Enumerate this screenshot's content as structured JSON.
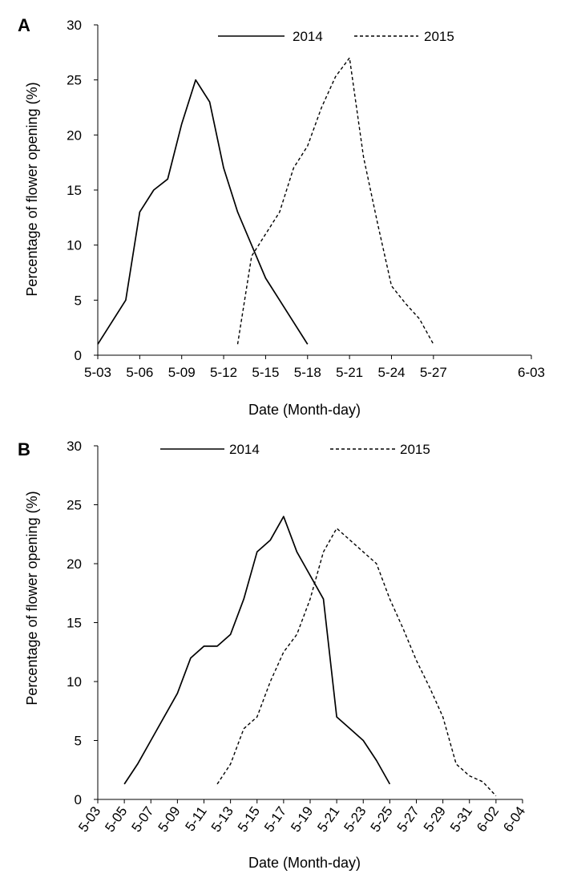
{
  "chart_data": [
    {
      "panel": "A",
      "type": "line",
      "xlabel": "Date (Month-day)",
      "ylabel": "Percentage of flower opening (%)",
      "x_ticks": [
        "5-03",
        "5-06",
        "5-09",
        "5-12",
        "5-15",
        "5-18",
        "5-21",
        "5-24",
        "5-27",
        "6-03"
      ],
      "xlim": [
        "5-03",
        "6-03"
      ],
      "ylim": [
        0,
        30
      ],
      "y_ticks": [
        0,
        5,
        10,
        15,
        20,
        25,
        30
      ],
      "grid": false,
      "legend_position": "top",
      "series": [
        {
          "name": "2014",
          "style": "solid",
          "x": [
            "5-03",
            "5-05",
            "5-06",
            "5-07",
            "5-08",
            "5-09",
            "5-10",
            "5-11",
            "5-12",
            "5-13",
            "5-14",
            "5-15",
            "5-16",
            "5-17",
            "5-18"
          ],
          "y": [
            1,
            5,
            13,
            15,
            16,
            21,
            25,
            23,
            17,
            13,
            10,
            7,
            5,
            3,
            1
          ]
        },
        {
          "name": "2015",
          "style": "dashed",
          "x": [
            "5-13",
            "5-14",
            "5-15",
            "5-16",
            "5-17",
            "5-18",
            "5-19",
            "5-20",
            "5-21",
            "5-22",
            "5-23",
            "5-24",
            "5-25",
            "5-26",
            "5-27"
          ],
          "y": [
            1,
            9,
            11,
            13,
            17,
            19,
            22.5,
            25.3,
            27,
            18,
            12,
            6.3,
            4.7,
            3.3,
            1
          ]
        }
      ]
    },
    {
      "panel": "B",
      "type": "line",
      "xlabel": "Date (Month-day)",
      "ylabel": "Percentage of flower opening (%)",
      "x_ticks": [
        "5-03",
        "5-05",
        "5-07",
        "5-09",
        "5-11",
        "5-13",
        "5-15",
        "5-17",
        "5-19",
        "5-21",
        "5-23",
        "5-25",
        "5-27",
        "5-29",
        "5-31",
        "6-02",
        "6-04"
      ],
      "xlim": [
        "5-03",
        "6-04"
      ],
      "ylim": [
        0,
        30
      ],
      "y_ticks": [
        0,
        5,
        10,
        15,
        20,
        25,
        30
      ],
      "grid": false,
      "legend_position": "top",
      "series": [
        {
          "name": "2014",
          "style": "solid",
          "x": [
            "5-05",
            "5-06",
            "5-07",
            "5-08",
            "5-09",
            "5-10",
            "5-11",
            "5-12",
            "5-13",
            "5-14",
            "5-15",
            "5-16",
            "5-17",
            "5-18",
            "5-19",
            "5-20",
            "5-21",
            "5-22",
            "5-23",
            "5-24",
            "5-25"
          ],
          "y": [
            1.3,
            3,
            5,
            7,
            9,
            12,
            13,
            13,
            14,
            17,
            21,
            22,
            24,
            21,
            19,
            17,
            7,
            6,
            5,
            3.3,
            1.3
          ]
        },
        {
          "name": "2015",
          "style": "dashed",
          "x": [
            "5-12",
            "5-13",
            "5-14",
            "5-15",
            "5-16",
            "5-17",
            "5-18",
            "5-19",
            "5-20",
            "5-21",
            "5-22",
            "5-23",
            "5-24",
            "5-25",
            "5-26",
            "5-27",
            "5-28",
            "5-29",
            "5-30",
            "5-31",
            "6-01",
            "6-02"
          ],
          "y": [
            1.3,
            3,
            6,
            7,
            10,
            12.5,
            14,
            17,
            21,
            23,
            22,
            21,
            20,
            17,
            14.5,
            11.8,
            9.5,
            7,
            3,
            2,
            1.5,
            0.3
          ]
        }
      ]
    }
  ]
}
